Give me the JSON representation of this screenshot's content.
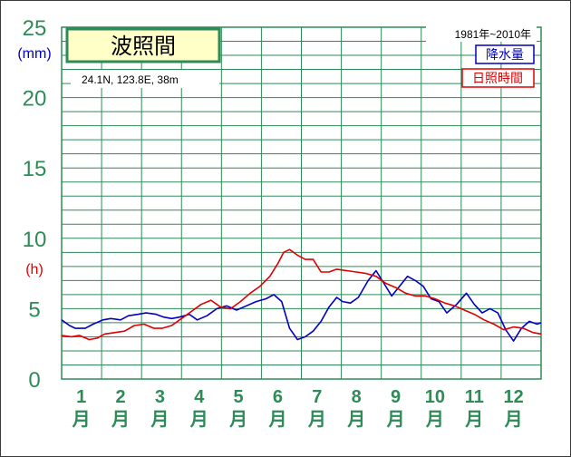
{
  "chart_data": {
    "type": "line",
    "title": "波照間",
    "station_info": "24.1N, 123.8E, 38m",
    "period": "1981年~2010年",
    "ylim": [
      0,
      25
    ],
    "yticks": [
      "0",
      "5",
      "10",
      "15",
      "20",
      "25"
    ],
    "unit_precip": "(mm)",
    "unit_sun": "(h)",
    "months": [
      "1",
      "2",
      "3",
      "4",
      "5",
      "6",
      "7",
      "8",
      "9",
      "10",
      "11",
      "12"
    ],
    "month_suffix": "月",
    "x_range": [
      0.5,
      12.7
    ],
    "series": [
      {
        "name": "降水量",
        "color": "#0000c0",
        "x": [
          0.5,
          0.7,
          0.85,
          1.1,
          1.3,
          1.55,
          1.75,
          2.0,
          2.2,
          2.45,
          2.65,
          2.9,
          3.1,
          3.3,
          3.5,
          3.75,
          3.95,
          4.2,
          4.45,
          4.7,
          4.95,
          5.2,
          5.45,
          5.7,
          5.9,
          6.1,
          6.3,
          6.5,
          6.7,
          6.9,
          7.1,
          7.3,
          7.5,
          7.65,
          7.85,
          8.05,
          8.3,
          8.5,
          8.7,
          8.9,
          9.1,
          9.3,
          9.5,
          9.7,
          9.9,
          10.1,
          10.3,
          10.55,
          10.8,
          11.0,
          11.2,
          11.4,
          11.6,
          11.8,
          12.0,
          12.2,
          12.4,
          12.6,
          12.7
        ],
        "values": [
          4.2,
          3.8,
          3.6,
          3.6,
          3.9,
          4.2,
          4.3,
          4.2,
          4.5,
          4.6,
          4.7,
          4.6,
          4.4,
          4.3,
          4.4,
          4.6,
          4.2,
          4.5,
          5.0,
          5.2,
          4.9,
          5.2,
          5.5,
          5.7,
          6.0,
          5.5,
          3.6,
          2.8,
          3.0,
          3.4,
          4.1,
          5.1,
          5.8,
          5.5,
          5.4,
          5.8,
          7.0,
          7.7,
          6.8,
          5.9,
          6.6,
          7.3,
          7.0,
          6.6,
          5.7,
          5.5,
          4.7,
          5.3,
          6.1,
          5.3,
          4.7,
          5.0,
          4.7,
          3.5,
          2.7,
          3.6,
          4.1,
          3.9,
          4.0
        ]
      },
      {
        "name": "日照時間",
        "color": "#e00000",
        "x": [
          0.5,
          0.75,
          0.95,
          1.2,
          1.4,
          1.6,
          1.85,
          2.1,
          2.35,
          2.6,
          2.85,
          3.05,
          3.3,
          3.55,
          3.8,
          4.05,
          4.3,
          4.55,
          4.8,
          5.05,
          5.3,
          5.55,
          5.8,
          6.0,
          6.15,
          6.3,
          6.5,
          6.7,
          6.9,
          7.1,
          7.3,
          7.5,
          7.75,
          8.0,
          8.25,
          8.5,
          8.75,
          9.0,
          9.25,
          9.5,
          9.75,
          10.0,
          10.25,
          10.5,
          10.75,
          11.0,
          11.25,
          11.5,
          11.75,
          12.0,
          12.25,
          12.5,
          12.7
        ],
        "values": [
          3.1,
          3.0,
          3.1,
          2.8,
          2.9,
          3.2,
          3.3,
          3.4,
          3.8,
          3.9,
          3.6,
          3.6,
          3.8,
          4.3,
          4.8,
          5.3,
          5.6,
          5.1,
          5.0,
          5.5,
          6.1,
          6.6,
          7.3,
          8.2,
          9.0,
          9.2,
          8.8,
          8.5,
          8.5,
          7.6,
          7.6,
          7.8,
          7.7,
          7.6,
          7.5,
          7.3,
          6.8,
          6.5,
          6.1,
          5.9,
          5.9,
          5.7,
          5.4,
          5.2,
          4.9,
          4.6,
          4.2,
          3.9,
          3.5,
          3.7,
          3.6,
          3.3,
          3.2
        ]
      }
    ]
  }
}
